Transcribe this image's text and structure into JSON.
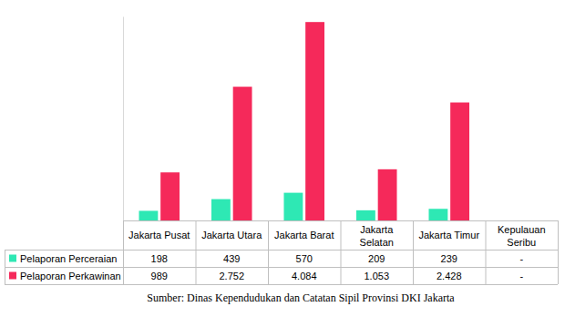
{
  "chart_data": {
    "type": "bar",
    "categories": [
      "Jakarta Pusat",
      "Jakarta Utara",
      "Jakarta Barat",
      "Jakarta Selatan",
      "Jakarta Timur",
      "Kepulauan Seribu"
    ],
    "series": [
      {
        "name": "Pelaporan Perceraian",
        "color": "#2ee8b4",
        "values": [
          198,
          439,
          570,
          209,
          239,
          null
        ],
        "value_labels": [
          "198",
          "439",
          "570",
          "209",
          "239",
          "-"
        ]
      },
      {
        "name": "Pelaporan Perkawinan",
        "color": "#f5295a",
        "values": [
          989,
          2752,
          4084,
          1053,
          2428,
          null
        ],
        "value_labels": [
          "989",
          "2.752",
          "4.084",
          "1.053",
          "2.428",
          "-"
        ]
      }
    ],
    "ylim": [
      0,
      4200
    ],
    "tick_labels": false,
    "grid": false,
    "annotations": [
      "Sumber: Dinas Kependudukan dan Catatan Sipil Provinsi DKI Jakarta"
    ]
  }
}
